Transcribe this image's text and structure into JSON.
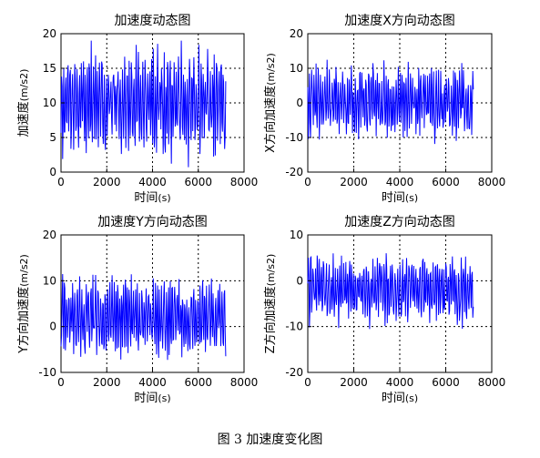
{
  "figure": {
    "caption": "图 3  加速度变化图"
  },
  "chart_data": [
    {
      "type": "line",
      "title": "加速度动态图",
      "xlabel_main": "时间",
      "xlabel_unit": "(s)",
      "ylabel_main": "加速度",
      "ylabel_unit": "(m/s2)",
      "xlim": [
        0,
        8000
      ],
      "ylim": [
        0,
        20
      ],
      "xticks": [
        0,
        2000,
        4000,
        6000,
        8000
      ],
      "yticks": [
        0,
        5,
        10,
        15,
        20
      ],
      "grid": true,
      "x_end": 7200,
      "samples": 300,
      "series": [
        {
          "color": "#0000ff",
          "center": 10,
          "amplitude": 7,
          "min": 0.5,
          "max": 19,
          "values_note_excluded": true
        }
      ]
    },
    {
      "type": "line",
      "title": "加速度X方向动态图",
      "xlabel_main": "时间",
      "xlabel_unit": "(s)",
      "ylabel_main": "X方向加速度",
      "ylabel_unit": "(m/s2)",
      "xlim": [
        0,
        8000
      ],
      "ylim": [
        -20,
        20
      ],
      "xticks": [
        0,
        2000,
        4000,
        6000,
        8000
      ],
      "yticks": [
        -20,
        -10,
        0,
        10,
        20
      ],
      "grid": true,
      "x_end": 7200,
      "samples": 300,
      "series": [
        {
          "color": "#0000ff",
          "center": 0,
          "amplitude": 10,
          "min": -17,
          "max": 16
        }
      ]
    },
    {
      "type": "line",
      "title": "加速度Y方向动态图",
      "xlabel_main": "时间",
      "xlabel_unit": "(s)",
      "ylabel_main": "Y方向加速度",
      "ylabel_unit": "(m/s2)",
      "xlim": [
        0,
        8000
      ],
      "ylim": [
        -10,
        20
      ],
      "xticks": [
        0,
        2000,
        4000,
        6000,
        8000
      ],
      "yticks": [
        -10,
        0,
        10,
        20
      ],
      "grid": true,
      "x_end": 7200,
      "samples": 300,
      "series": [
        {
          "color": "#0000ff",
          "center": 2,
          "amplitude": 8,
          "min": -9,
          "max": 13
        }
      ]
    },
    {
      "type": "line",
      "title": "加速度Z方向动态图",
      "xlabel_main": "时间",
      "xlabel_unit": "(s)",
      "ylabel_main": "Z方向加速度",
      "ylabel_unit": "(m/s2)",
      "xlim": [
        0,
        8000
      ],
      "ylim": [
        -20,
        10
      ],
      "xticks": [
        0,
        2000,
        4000,
        6000,
        8000
      ],
      "yticks": [
        -20,
        -10,
        0,
        10
      ],
      "grid": true,
      "x_end": 7200,
      "samples": 300,
      "series": [
        {
          "color": "#0000ff",
          "center": -2,
          "amplitude": 7,
          "min": -12,
          "max": 6
        }
      ]
    }
  ]
}
